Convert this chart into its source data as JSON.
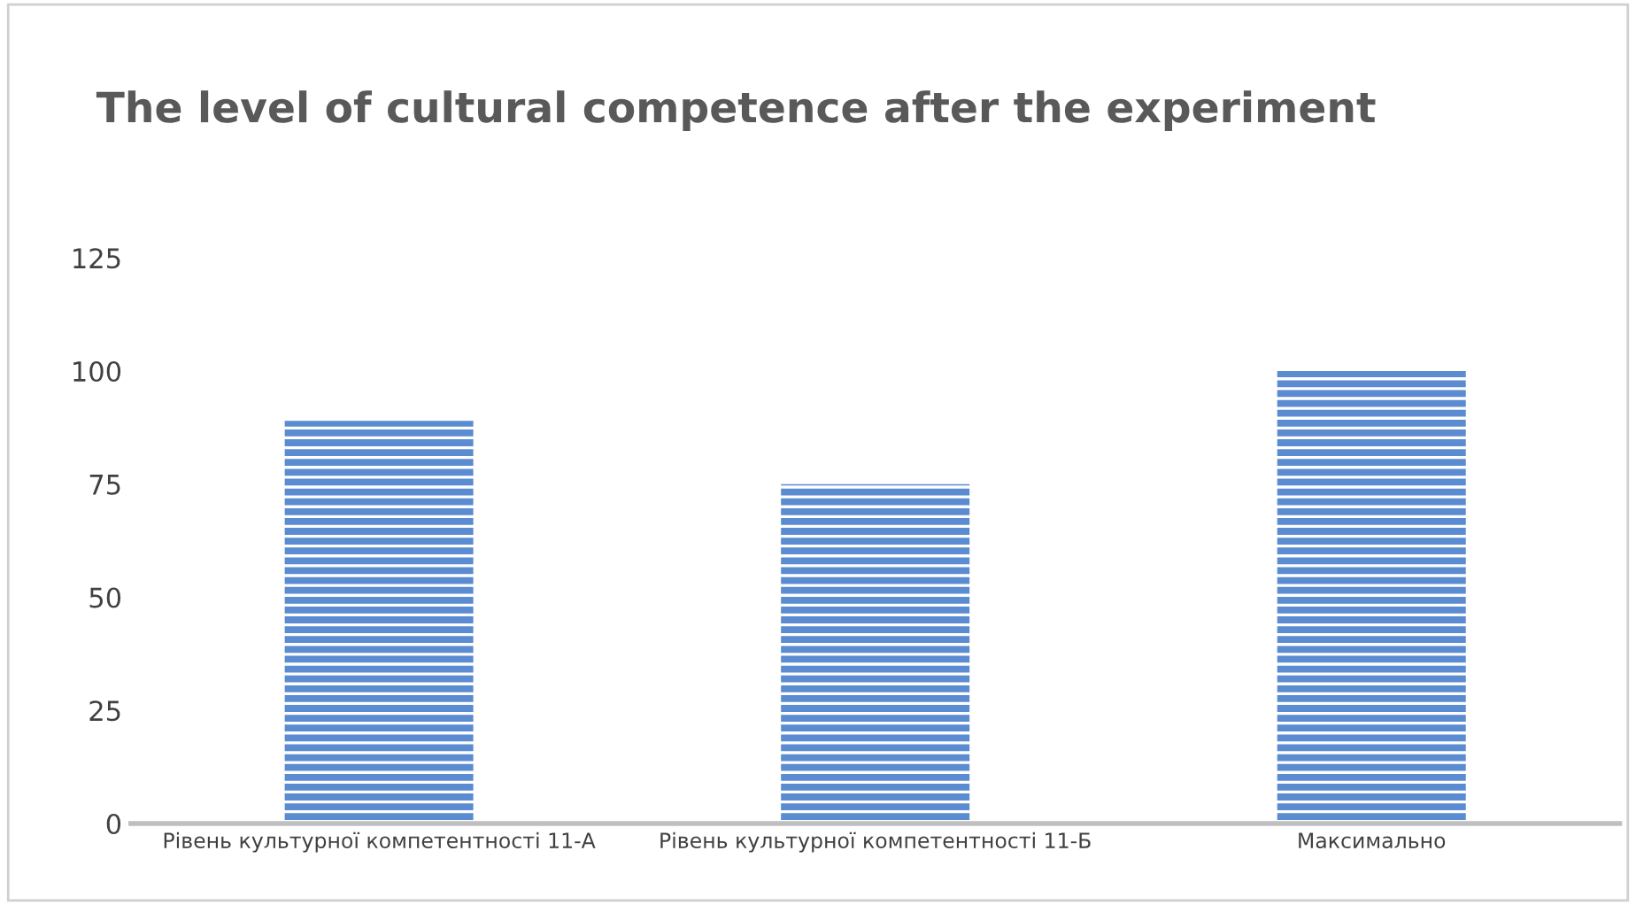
{
  "chart_data": {
    "type": "bar",
    "title": "The level of cultural competence after the experiment",
    "categories": [
      "Рівень культурної компетентності 11-А",
      "Рівень культурної компетентності 11-Б",
      "Максимально"
    ],
    "values": [
      89,
      75,
      100
    ],
    "color": "#5b8bd0",
    "ylim": [
      0,
      125
    ],
    "yticks": [
      0,
      25,
      50,
      75,
      100,
      125
    ],
    "grid": false
  }
}
